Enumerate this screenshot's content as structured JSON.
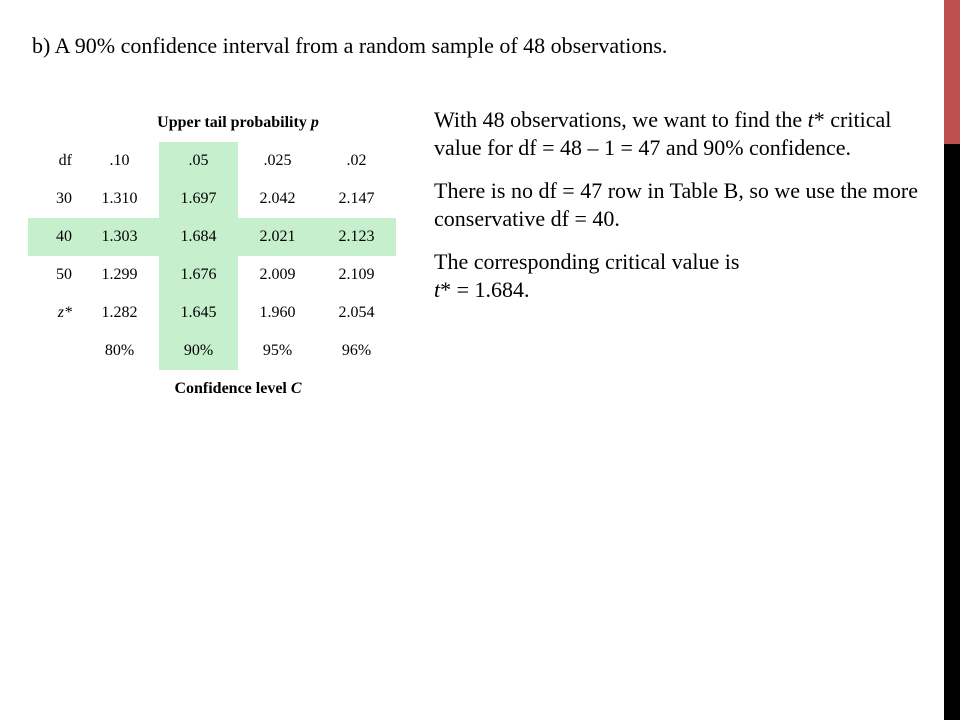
{
  "heading": "b) A 90% confidence interval from a random sample of 48 observations.",
  "table": {
    "caption_text": "Upper tail probability ",
    "caption_var": "p",
    "header": [
      "df",
      ".10",
      ".05",
      ".025",
      ".02"
    ],
    "rows": [
      {
        "label": "30",
        "values": [
          "1.310",
          "1.697",
          "2.042",
          "2.147"
        ]
      },
      {
        "label": "40",
        "values": [
          "1.303",
          "1.684",
          "2.021",
          "2.123"
        ]
      },
      {
        "label": "50",
        "values": [
          "1.299",
          "1.676",
          "2.009",
          "2.109"
        ]
      },
      {
        "label": "z*",
        "values": [
          "1.282",
          "1.645",
          "1.960",
          "2.054"
        ]
      }
    ],
    "confidence_levels": [
      "80%",
      "90%",
      "95%",
      "96%"
    ],
    "footer_text": "Confidence level ",
    "footer_var": "C",
    "highlight_color": "#c6efce"
  },
  "explanation": {
    "p1_a": "With 48 observations, we want to find the ",
    "p1_var": "t",
    "p1_b": "* critical value for df = 48 – 1 = 47 and 90% confidence.",
    "p2": "There is no df = 47 row in Table B, so we use the more conservative df = 40.",
    "p3_a": "The corresponding critical value is ",
    "p3_var": "t",
    "p3_b": "* = 1.684."
  },
  "accent_colors": {
    "edge_upper": "#c0504d",
    "edge_lower": "#000000"
  }
}
